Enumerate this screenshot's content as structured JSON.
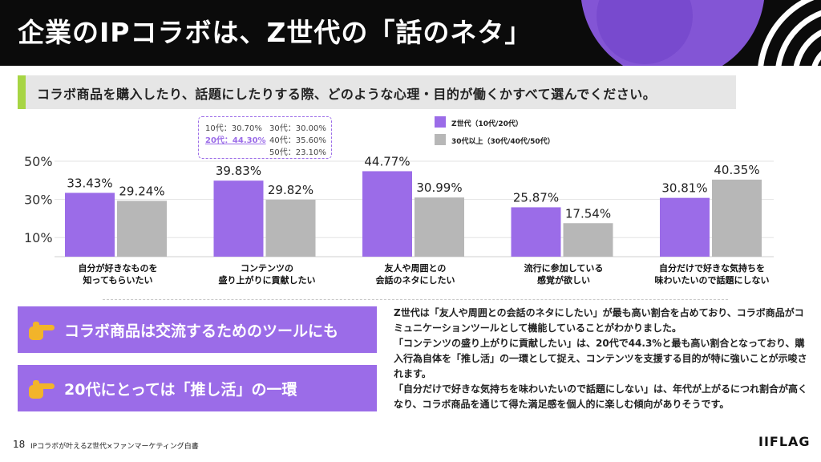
{
  "header": {
    "title": "企業のIPコラボは、Z世代の「話のネタ」"
  },
  "question": "コラボ商品を購入したり、話題にしたりする際、どのような心理・目的が働くかすべて選んでください。",
  "ratio_box": {
    "teen": "10代：30.70%",
    "twenties": "20代：44.30%",
    "thirties": "30代：30.00%",
    "forties": "40代：35.60%",
    "fifties": "50代：23.10%"
  },
  "legend": {
    "gen_z": "Z世代（10代/20代）",
    "older": "30代以上（30代/40代/50代）"
  },
  "colors": {
    "purple": "#9b6ce8",
    "gray": "#b7b7b7",
    "green_accent": "#a7d544",
    "hand": "#f2b42a"
  },
  "chart_data": {
    "type": "bar",
    "categories": [
      "自分が好きなものを\n知ってもらいたい",
      "コンテンツの\n盛り上がりに貢献したい",
      "友人や周囲との\n会話のネタにしたい",
      "流行に参加している\n感覚が欲しい",
      "自分だけで好きな気持ちを\n味わいたいので話題にしない"
    ],
    "series": [
      {
        "name": "Z世代（10代/20代）",
        "values": [
          33.43,
          39.83,
          44.77,
          25.87,
          30.81
        ],
        "labels": [
          "33.43%",
          "39.83%",
          "44.77%",
          "25.87%",
          "30.81%"
        ]
      },
      {
        "name": "30代以上（30代/40代/50代）",
        "values": [
          29.24,
          29.82,
          30.99,
          17.54,
          40.35
        ],
        "labels": [
          "29.24%",
          "29.82%",
          "30.99%",
          "17.54%",
          "40.35%"
        ]
      }
    ],
    "yticks": [
      "50%",
      "30%",
      "10%"
    ],
    "ytick_values": [
      50,
      30,
      10
    ],
    "ylim": [
      0,
      54
    ],
    "grid": true
  },
  "callouts": [
    {
      "text": "コラボ商品は交流するためのツールにも"
    },
    {
      "text": "20代にとっては「推し活」の一環"
    }
  ],
  "body": [
    "Z世代は「友人や周囲との会話のネタにしたい」が最も高い割合を占めており、コラボ商品がコミュニケーションツールとして機能していることがわかりました。",
    "「コンテンツの盛り上がりに貢献したい」は、20代で44.3%と最も高い割合となっており、購入行為自体を「推し活」の一環として捉え、コンテンツを支援する目的が特に強いことが示唆されます。",
    "「自分だけで好きな気持ちを味わいたいので話題にしない」は、年代が上がるにつれ割合が高くなり、コラボ商品を通じて得た満足感を個人的に楽しむ傾向がありそうです。"
  ],
  "footer": {
    "page": "18",
    "text": "IPコラボが叶えるZ世代×ファンマーケティング白書",
    "logo": "IIFLAG"
  }
}
